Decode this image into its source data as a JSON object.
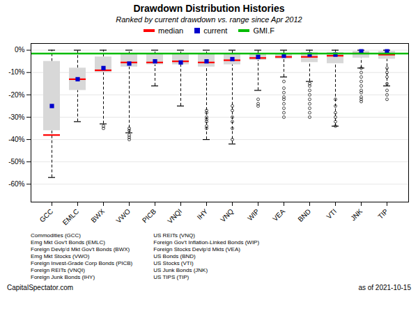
{
  "chart_data": {
    "type": "box",
    "title": "Drawdown Distribution Histories",
    "subtitle": "Ranked by current drawdown vs. range since Apr 2012",
    "footer": [
      "CapitalSpectator.com",
      "as of  2021-10-15"
    ],
    "categories": [
      "GCC",
      "EMLC",
      "BWX",
      "VWO",
      "PICB",
      "VNQI",
      "IHY",
      "VNQ",
      "WIP",
      "VEA",
      "BND",
      "VTI",
      "JNK",
      "TIP"
    ],
    "box_q1": [
      -36,
      -18,
      -10,
      -7.5,
      -6.5,
      -6.5,
      -7.5,
      -6.5,
      -4.5,
      -4.0,
      -5.5,
      -6.0,
      -3.5,
      -4.0
    ],
    "box_q3": [
      -5,
      -8,
      -3,
      -2.0,
      -2.0,
      -2.0,
      -2.0,
      -1.5,
      -1.5,
      -1.5,
      -1.0,
      -1.0,
      -0.5,
      -0.5
    ],
    "whisker_lo": [
      -57,
      -32,
      -33,
      -37,
      -16,
      -25,
      -40,
      -42,
      -18,
      -12,
      -14,
      -34,
      -8,
      -16
    ],
    "whisker_hi": [
      0,
      0,
      0,
      0,
      0,
      0,
      0,
      0,
      0,
      0,
      0,
      0,
      0,
      0
    ],
    "outliers": [
      [],
      [],
      [
        -34,
        -35
      ],
      [
        -38,
        -39,
        -40,
        -36,
        -35
      ],
      [],
      [],
      [
        -27,
        -28,
        -30,
        -31,
        -32,
        -34,
        -35
      ],
      [
        -25,
        -27,
        -30,
        -32,
        -35,
        -40
      ],
      [
        -22,
        -24,
        -25
      ],
      [
        -14,
        -17,
        -19,
        -21,
        -22,
        -24,
        -26,
        -28,
        -30
      ],
      [
        -15,
        -16,
        -18,
        -20,
        -22,
        -24,
        -26,
        -28,
        -30
      ],
      [
        -22,
        -25,
        -28,
        -30,
        -32,
        -34
      ],
      [
        -8,
        -10,
        -12,
        -14,
        -16,
        -18,
        -19,
        -21,
        -22,
        -23
      ],
      [
        -8,
        -10,
        -12,
        -15,
        -18,
        -20,
        -22
      ]
    ],
    "box_color": "#d8d8d8",
    "series": [
      {
        "name": "median",
        "color": "#ff0000",
        "type": "tick",
        "values": [
          -38,
          -13,
          -9,
          -5.5,
          -5.5,
          -5.0,
          -5.5,
          -4.5,
          -3.5,
          -3.0,
          -3.0,
          -2.5,
          -1.5,
          -2.0
        ]
      },
      {
        "name": "current",
        "color": "#0000cc",
        "type": "scatter",
        "marker": "square",
        "values": [
          -25,
          -13,
          -8,
          -6.0,
          -5.0,
          -5.5,
          -5.0,
          -4.0,
          -3.0,
          -2.5,
          -2.0,
          -2.0,
          -0.5,
          -0.5
        ]
      }
    ],
    "reference_lines": [
      {
        "name": "GMI.F",
        "value": -1.5,
        "color": "#00bb00"
      }
    ],
    "annotations": [
      "Commodities (GCC)\nEmg Mkt Gov't Bonds (EMLC)\nForeign Devlp'd Mkt Gov't Bonds (BWX)\nEmg Mkt Stocks (VWO)\nForeign Invest-Grade Corp Bonds (PICB)\nForeign REITs (VNQI)\nForeign Junk Bonds (IHY)",
      "US REITs (VNQ)\nForeign Gov't Inflation-Linked Bonds (WIP)\nForeign Stocks Devlp'd Mkts (VEA)\nUS Bonds (BND)\nUS Stocks (VTI)\nUS Junk Bonds (JNK)\nUS TIPS (TIP)"
    ],
    "ylim": [
      -68,
      3
    ],
    "yticks": [
      {
        "value": 0,
        "label": "0%"
      },
      {
        "value": -10,
        "label": "-10%"
      },
      {
        "value": -20,
        "label": "-20%"
      },
      {
        "value": -30,
        "label": "-30%"
      },
      {
        "value": -40,
        "label": "-40%"
      },
      {
        "value": -50,
        "label": "-50%"
      },
      {
        "value": -60,
        "label": "-60%"
      }
    ],
    "grid": true,
    "legend": "top"
  }
}
